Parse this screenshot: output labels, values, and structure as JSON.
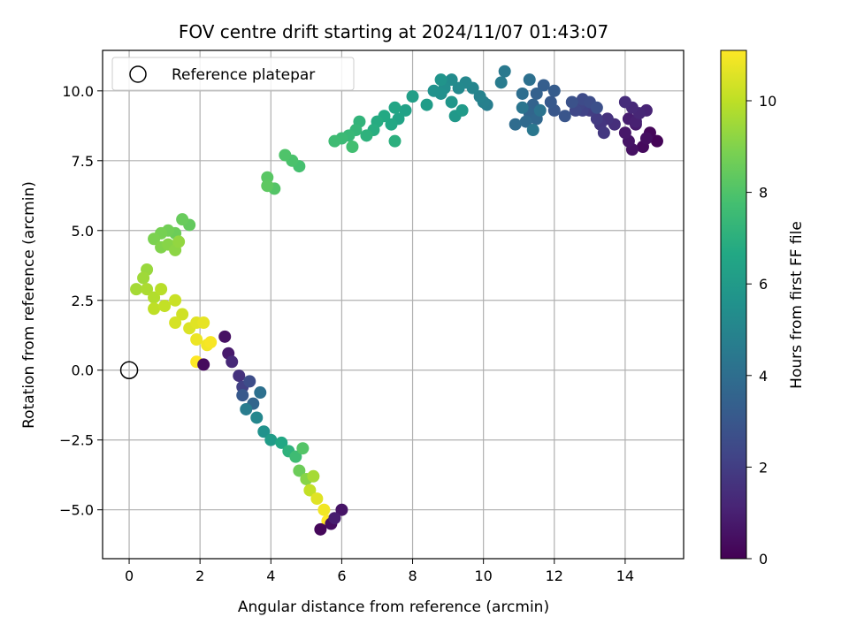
{
  "chart_data": {
    "type": "scatter",
    "title": "FOV centre drift starting at 2024/11/07 01:43:07",
    "xlabel": "Angular distance from reference (arcmin)",
    "ylabel": "Rotation from reference (arcmin)",
    "xlim": [
      -0.75,
      15.65
    ],
    "ylim": [
      -6.75,
      11.45
    ],
    "xticks": [
      0,
      2,
      4,
      6,
      8,
      10,
      12,
      14
    ],
    "yticks": [
      -5.0,
      -2.5,
      0.0,
      2.5,
      5.0,
      7.5,
      10.0
    ],
    "xtick_labels": [
      "0",
      "2",
      "4",
      "6",
      "8",
      "10",
      "12",
      "14"
    ],
    "ytick_labels": [
      "−5.0",
      "−2.5",
      "0.0",
      "2.5",
      "5.0",
      "7.5",
      "10.0"
    ],
    "grid": true,
    "colormap": "viridis",
    "colorbar": {
      "label": "Hours from first FF file",
      "range": [
        0,
        11.1
      ],
      "ticks": [
        0,
        2,
        4,
        6,
        8,
        10
      ],
      "tick_labels": [
        "0",
        "2",
        "4",
        "6",
        "8",
        "10"
      ]
    },
    "legend": {
      "placement": "top-left",
      "entries": [
        {
          "label": "Reference platepar",
          "marker": "open-circle"
        }
      ]
    },
    "reference_point": {
      "name": "Reference platepar",
      "x": 0,
      "y": 0
    },
    "series": [
      {
        "points": [
          [
            14.9,
            8.2,
            0.1
          ],
          [
            14.7,
            8.5,
            0.2
          ],
          [
            14.5,
            8.0,
            0.3
          ],
          [
            14.6,
            8.3,
            0.4
          ],
          [
            14.2,
            7.9,
            0.5
          ],
          [
            14.1,
            8.2,
            0.6
          ],
          [
            14.0,
            8.5,
            0.7
          ],
          [
            14.3,
            8.8,
            0.8
          ],
          [
            14.1,
            9.0,
            0.9
          ],
          [
            14.3,
            8.9,
            1.0
          ],
          [
            14.6,
            9.3,
            1.1
          ],
          [
            14.4,
            9.2,
            1.2
          ],
          [
            14.2,
            9.4,
            1.3
          ],
          [
            14.0,
            9.6,
            1.4
          ],
          [
            13.7,
            8.8,
            1.5
          ],
          [
            13.5,
            9.0,
            1.6
          ],
          [
            13.3,
            8.8,
            1.7
          ],
          [
            13.4,
            8.5,
            1.8
          ],
          [
            13.2,
            9.0,
            1.9
          ],
          [
            13.0,
            9.3,
            2.0
          ],
          [
            12.9,
            9.5,
            2.1
          ],
          [
            12.8,
            9.3,
            2.2
          ],
          [
            12.7,
            9.5,
            2.3
          ],
          [
            12.6,
            9.3,
            2.4
          ],
          [
            12.8,
            9.7,
            2.5
          ],
          [
            13.0,
            9.6,
            2.6
          ],
          [
            13.2,
            9.4,
            2.7
          ],
          [
            12.5,
            9.6,
            2.8
          ],
          [
            12.3,
            9.1,
            2.9
          ],
          [
            12.0,
            9.3,
            3.0
          ],
          [
            11.9,
            9.6,
            3.1
          ],
          [
            12.0,
            10.0,
            3.2
          ],
          [
            11.7,
            10.2,
            3.3
          ],
          [
            11.5,
            9.9,
            3.4
          ],
          [
            11.4,
            9.5,
            3.5
          ],
          [
            11.3,
            9.2,
            3.6
          ],
          [
            11.5,
            9.0,
            3.7
          ],
          [
            11.2,
            8.9,
            3.8
          ],
          [
            10.9,
            8.8,
            3.9
          ],
          [
            11.1,
            9.9,
            4.0
          ],
          [
            11.3,
            10.4,
            4.1
          ],
          [
            11.6,
            9.3,
            4.2
          ],
          [
            11.1,
            9.4,
            4.3
          ],
          [
            11.4,
            8.6,
            4.4
          ],
          [
            10.6,
            10.7,
            4.5
          ],
          [
            10.5,
            10.3,
            4.6
          ],
          [
            10.1,
            9.5,
            4.7
          ],
          [
            10.0,
            9.6,
            4.8
          ],
          [
            9.9,
            9.8,
            4.9
          ],
          [
            9.7,
            10.1,
            5.0
          ],
          [
            9.5,
            10.3,
            5.1
          ],
          [
            9.3,
            10.1,
            5.2
          ],
          [
            9.1,
            10.4,
            5.3
          ],
          [
            8.9,
            10.1,
            5.4
          ],
          [
            8.8,
            9.9,
            5.5
          ],
          [
            8.6,
            10.0,
            5.6
          ],
          [
            8.8,
            10.4,
            5.7
          ],
          [
            9.1,
            9.6,
            5.8
          ],
          [
            9.2,
            9.1,
            5.9
          ],
          [
            9.4,
            9.3,
            6.0
          ],
          [
            8.4,
            9.5,
            6.1
          ],
          [
            8.0,
            9.8,
            6.2
          ],
          [
            7.8,
            9.3,
            6.3
          ],
          [
            7.6,
            9.0,
            6.4
          ],
          [
            7.5,
            9.4,
            6.5
          ],
          [
            7.4,
            8.8,
            6.6
          ],
          [
            7.2,
            9.1,
            6.7
          ],
          [
            7.0,
            8.9,
            6.8
          ],
          [
            6.9,
            8.6,
            6.9
          ],
          [
            7.5,
            8.2,
            7.0
          ],
          [
            6.7,
            8.4,
            7.1
          ],
          [
            6.5,
            8.9,
            7.2
          ],
          [
            6.4,
            8.6,
            7.3
          ],
          [
            6.2,
            8.4,
            7.4
          ],
          [
            6.0,
            8.3,
            7.5
          ],
          [
            5.8,
            8.2,
            7.6
          ],
          [
            6.3,
            8.0,
            7.7
          ],
          [
            4.8,
            7.3,
            7.8
          ],
          [
            4.6,
            7.5,
            7.9
          ],
          [
            4.4,
            7.7,
            8.0
          ],
          [
            4.1,
            6.5,
            8.1
          ],
          [
            3.9,
            6.9,
            8.2
          ],
          [
            3.9,
            6.6,
            8.3
          ],
          [
            1.7,
            5.2,
            8.4
          ],
          [
            1.5,
            5.4,
            8.5
          ],
          [
            1.3,
            4.9,
            8.6
          ],
          [
            1.1,
            5.0,
            8.7
          ],
          [
            0.9,
            4.9,
            8.8
          ],
          [
            0.7,
            4.7,
            8.9
          ],
          [
            0.9,
            4.4,
            9.0
          ],
          [
            1.1,
            4.5,
            9.1
          ],
          [
            1.3,
            4.3,
            9.2
          ],
          [
            1.4,
            4.6,
            9.3
          ],
          [
            0.5,
            3.6,
            9.4
          ],
          [
            0.4,
            3.3,
            9.5
          ],
          [
            0.2,
            2.9,
            9.6
          ],
          [
            0.5,
            2.9,
            9.7
          ],
          [
            0.7,
            2.6,
            9.8
          ],
          [
            0.9,
            2.9,
            9.9
          ],
          [
            0.7,
            2.2,
            10.0
          ],
          [
            1.0,
            2.3,
            10.1
          ],
          [
            1.3,
            2.5,
            10.2
          ],
          [
            1.5,
            2.0,
            10.3
          ],
          [
            1.3,
            1.7,
            10.4
          ],
          [
            1.7,
            1.5,
            10.5
          ],
          [
            1.9,
            1.7,
            10.6
          ],
          [
            2.1,
            1.7,
            10.7
          ],
          [
            1.9,
            1.1,
            10.8
          ],
          [
            2.2,
            0.9,
            10.9
          ],
          [
            2.3,
            1.0,
            11.0
          ],
          [
            1.9,
            0.3,
            11.1
          ],
          [
            2.1,
            0.2,
            0.3
          ],
          [
            2.7,
            1.2,
            0.5
          ],
          [
            2.8,
            0.6,
            0.8
          ],
          [
            2.9,
            0.3,
            1.3
          ],
          [
            3.1,
            -0.2,
            1.6
          ],
          [
            3.2,
            -0.6,
            2.1
          ],
          [
            3.4,
            -0.4,
            2.6
          ],
          [
            3.2,
            -0.9,
            3.1
          ],
          [
            3.5,
            -1.2,
            3.6
          ],
          [
            3.7,
            -0.8,
            4.1
          ],
          [
            3.3,
            -1.4,
            4.6
          ],
          [
            3.6,
            -1.7,
            5.1
          ],
          [
            3.8,
            -2.2,
            5.6
          ],
          [
            4.0,
            -2.5,
            6.1
          ],
          [
            4.3,
            -2.6,
            6.6
          ],
          [
            4.5,
            -2.9,
            7.1
          ],
          [
            4.7,
            -3.1,
            7.6
          ],
          [
            4.9,
            -2.8,
            8.1
          ],
          [
            4.8,
            -3.6,
            8.6
          ],
          [
            5.0,
            -3.9,
            9.1
          ],
          [
            5.2,
            -3.8,
            9.6
          ],
          [
            5.1,
            -4.3,
            10.1
          ],
          [
            5.3,
            -4.6,
            10.6
          ],
          [
            5.5,
            -5.0,
            10.9
          ],
          [
            5.6,
            -5.4,
            11.1
          ],
          [
            5.4,
            -5.7,
            0.2
          ],
          [
            5.7,
            -5.5,
            0.4
          ],
          [
            6.0,
            -5.0,
            0.6
          ],
          [
            5.8,
            -5.3,
            0.9
          ]
        ]
      }
    ]
  }
}
